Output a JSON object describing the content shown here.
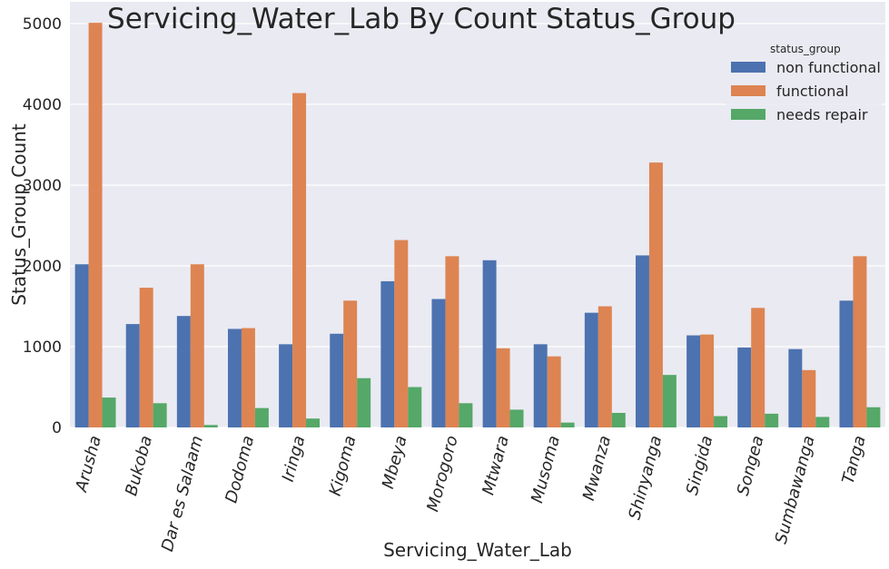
{
  "chart_data": {
    "type": "bar",
    "title": "Servicing_Water_Lab By Count Status_Group",
    "xlabel": "Servicing_Water_Lab",
    "ylabel": "Status_Group Count",
    "categories": [
      "Arusha",
      "Bukoba",
      "Dar es Salaam",
      "Dodoma",
      "Iringa",
      "Kigoma",
      "Mbeya",
      "Morogoro",
      "Mtwara",
      "Musoma",
      "Mwanza",
      "Shinyanga",
      "Singida",
      "Songea",
      "Sumbawanga",
      "Tanga"
    ],
    "series": [
      {
        "name": "non functional",
        "color": "#4c72b0",
        "values": [
          2020,
          1280,
          1380,
          1220,
          1030,
          1160,
          1810,
          1590,
          2070,
          1030,
          1420,
          2130,
          1140,
          990,
          970,
          1570
        ]
      },
      {
        "name": "functional",
        "color": "#dd8452",
        "values": [
          5010,
          1730,
          2020,
          1230,
          4140,
          1570,
          2320,
          2120,
          980,
          880,
          1500,
          3280,
          1150,
          1480,
          710,
          2120
        ]
      },
      {
        "name": "needs repair",
        "color": "#55a868",
        "values": [
          370,
          300,
          30,
          240,
          110,
          610,
          500,
          300,
          220,
          60,
          180,
          650,
          140,
          170,
          130,
          250
        ]
      }
    ],
    "yticks": [
      0,
      1000,
      2000,
      3000,
      4000,
      5000
    ],
    "ylim": [
      0,
      5270
    ],
    "legend": {
      "title": "status_group",
      "placement": "top-right"
    },
    "grid": true,
    "background": "#eaeaf2"
  }
}
